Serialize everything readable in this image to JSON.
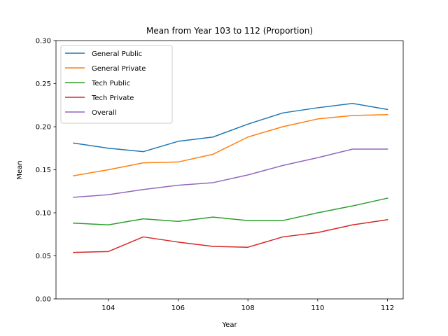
{
  "chart_data": {
    "type": "line",
    "title": "Mean from Year 103 to 112 (Proportion)",
    "xlabel": "Year",
    "ylabel": "Mean",
    "x": [
      103,
      104,
      105,
      106,
      107,
      108,
      109,
      110,
      111,
      112
    ],
    "xlim": [
      102.5,
      112.45
    ],
    "ylim": [
      0.0,
      0.3
    ],
    "x_ticks": [
      104,
      106,
      108,
      110,
      112
    ],
    "y_ticks": [
      0.0,
      0.05,
      0.1,
      0.15,
      0.2,
      0.25,
      0.3
    ],
    "y_tick_labels": [
      "0.00",
      "0.05",
      "0.10",
      "0.15",
      "0.20",
      "0.25",
      "0.30"
    ],
    "grid": false,
    "legend_position": "top-left",
    "series": [
      {
        "name": "General Public",
        "color": "#1f77b4",
        "values": [
          0.181,
          0.175,
          0.171,
          0.183,
          0.188,
          0.203,
          0.216,
          0.222,
          0.227,
          0.22
        ]
      },
      {
        "name": "General Private",
        "color": "#ff7f0e",
        "values": [
          0.143,
          0.15,
          0.158,
          0.159,
          0.168,
          0.188,
          0.2,
          0.209,
          0.213,
          0.214
        ]
      },
      {
        "name": "Tech Public",
        "color": "#2ca02c",
        "values": [
          0.088,
          0.086,
          0.093,
          0.09,
          0.095,
          0.091,
          0.091,
          0.1,
          0.108,
          0.117
        ]
      },
      {
        "name": "Tech Private",
        "color": "#d62728",
        "values": [
          0.054,
          0.055,
          0.072,
          0.066,
          0.061,
          0.06,
          0.072,
          0.077,
          0.086,
          0.092
        ]
      },
      {
        "name": "Overall",
        "color": "#9467bd",
        "values": [
          0.118,
          0.121,
          0.127,
          0.132,
          0.135,
          0.144,
          0.155,
          0.164,
          0.174,
          0.174
        ]
      }
    ]
  }
}
